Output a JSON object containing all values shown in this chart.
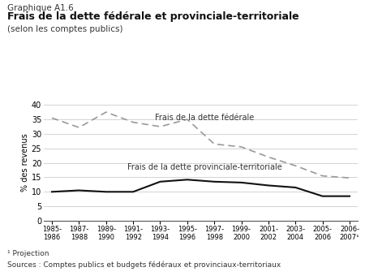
{
  "title_line1": "Graphique A1.6",
  "title_line2": "Frais de la dette fédérale et provinciale-territoriale",
  "title_line3": "(selon les comptes publics)",
  "ylabel": "% des revenus",
  "footnote": "¹ Projection",
  "source": "Sources : Comptes publics et budgets fédéraux et provinciaux-territoriaux",
  "x_labels": [
    "1985-\n1986",
    "1987-\n1988",
    "1989-\n1990",
    "1991-\n1992",
    "1993-\n1994",
    "1995-\n1996",
    "1997-\n1998",
    "1999-\n2000",
    "2001-\n2002",
    "2003-\n2004",
    "2005-\n2006",
    "2006-\n2007¹"
  ],
  "x_positions": [
    0,
    1,
    2,
    3,
    4,
    5,
    6,
    7,
    8,
    9,
    10,
    11
  ],
  "federal_data": [
    35.5,
    32.2,
    37.5,
    34.0,
    32.5,
    35.0,
    26.5,
    25.5,
    22.0,
    19.0,
    15.5,
    14.8
  ],
  "provincial_data": [
    10.0,
    10.5,
    10.0,
    10.0,
    13.5,
    14.2,
    13.5,
    13.2,
    12.2,
    11.5,
    8.5,
    8.5
  ],
  "federal_color": "#999999",
  "provincial_color": "#111111",
  "federal_label": "Frais de la dette fédérale",
  "provincial_label": "Frais de la dette provinciale-territoriale",
  "ylim": [
    0,
    40
  ],
  "yticks": [
    0,
    5,
    10,
    15,
    20,
    25,
    30,
    35,
    40
  ],
  "background_color": "#ffffff",
  "grid_color": "#cccccc"
}
